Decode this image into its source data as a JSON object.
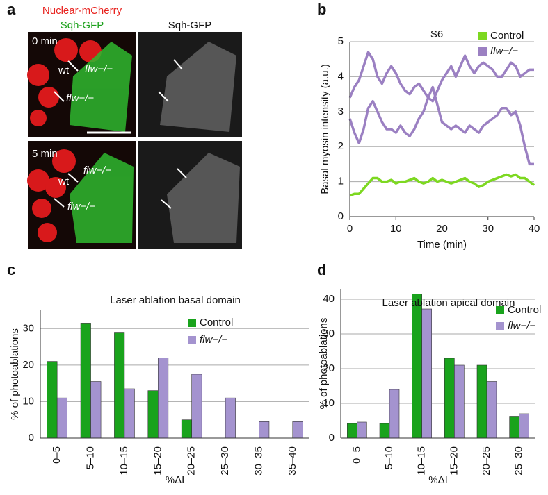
{
  "panel_labels": [
    "a",
    "b",
    "c",
    "d"
  ],
  "panel_a": {
    "header_left_1": "Nuclear-mCherry",
    "header_left_2": "Sqh-GFP",
    "header_right": "Sqh-GFP",
    "time_1": "0 min",
    "time_2": "5 min",
    "wt": "wt",
    "mutant": "flw−/−"
  },
  "chart_data": [
    {
      "type": "line",
      "title": "S6",
      "xlabel": "Time (min)",
      "ylabel": "Basal myosin intensity (a.u.)",
      "x": [
        0,
        1,
        2,
        3,
        4,
        5,
        6,
        7,
        8,
        9,
        10,
        11,
        12,
        13,
        14,
        15,
        16,
        17,
        18,
        19,
        20,
        21,
        22,
        23,
        24,
        25,
        26,
        27,
        28,
        29,
        30,
        31,
        32,
        33,
        34,
        35,
        36,
        37,
        38,
        39,
        40
      ],
      "series": [
        {
          "name": "Control",
          "color": "#7dd821",
          "values": [
            0.6,
            0.65,
            0.65,
            0.8,
            0.95,
            1.1,
            1.1,
            1.0,
            1.0,
            1.05,
            0.95,
            1.0,
            1.0,
            1.05,
            1.1,
            1.0,
            0.95,
            1.0,
            1.1,
            1.0,
            1.05,
            1.0,
            0.95,
            1.0,
            1.05,
            1.1,
            1.0,
            0.95,
            0.85,
            0.9,
            1.0,
            1.05,
            1.1,
            1.15,
            1.2,
            1.15,
            1.2,
            1.1,
            1.1,
            1.0,
            0.9
          ]
        },
        {
          "name": "flw−/−",
          "color": "#9b80c2",
          "values": [
            3.4,
            3.7,
            3.9,
            4.3,
            4.7,
            4.5,
            4.0,
            3.8,
            4.1,
            4.3,
            4.1,
            3.8,
            3.6,
            3.5,
            3.7,
            3.8,
            3.6,
            3.4,
            3.3,
            3.6,
            3.9,
            4.1,
            4.3,
            4.0,
            4.3,
            4.6,
            4.3,
            4.1,
            4.3,
            4.4,
            4.3,
            4.2,
            4.0,
            4.0,
            4.2,
            4.4,
            4.3,
            4.0,
            4.1,
            4.2,
            4.2
          ]
        },
        {
          "name": "flw−/−",
          "color": "#9b80c2",
          "values": [
            2.8,
            2.4,
            2.1,
            2.5,
            3.1,
            3.3,
            3.0,
            2.7,
            2.5,
            2.5,
            2.4,
            2.6,
            2.4,
            2.3,
            2.5,
            2.8,
            3.0,
            3.4,
            3.7,
            3.2,
            2.7,
            2.6,
            2.5,
            2.6,
            2.5,
            2.4,
            2.6,
            2.5,
            2.4,
            2.6,
            2.7,
            2.8,
            2.9,
            3.1,
            3.1,
            2.9,
            3.0,
            2.6,
            2.0,
            1.5,
            1.5
          ]
        }
      ],
      "xlim": [
        0,
        40
      ],
      "ylim": [
        0,
        5
      ],
      "xticks": [
        0,
        10,
        20,
        30,
        40
      ],
      "yticks": [
        0,
        1,
        2,
        3,
        4,
        5
      ],
      "grid": true,
      "legend": "upper right"
    },
    {
      "type": "bar",
      "title": "Laser ablation basal domain",
      "xlabel": "%ΔI",
      "ylabel": "% of photoablations",
      "categories": [
        "0–5",
        "5–10",
        "10–15",
        "15–20",
        "20–25",
        "25–30",
        "30–35",
        "35–40"
      ],
      "series": [
        {
          "name": "Control",
          "color": "#19a31c",
          "values": [
            21,
            31.5,
            29,
            13,
            5,
            0,
            0,
            0
          ]
        },
        {
          "name": "flw−/−",
          "color": "#a493cf",
          "values": [
            11,
            15.5,
            13.5,
            22,
            17.5,
            11,
            4.5,
            4.5
          ]
        }
      ],
      "ylim": [
        0,
        35
      ],
      "yticks": [
        0,
        10,
        20,
        30
      ],
      "grid": true,
      "legend": "upper right"
    },
    {
      "type": "bar",
      "title": "Laser ablation apical domain",
      "xlabel": "%ΔI",
      "ylabel": "% of photoablations",
      "categories": [
        "0–5",
        "5–10",
        "10–15",
        "15–20",
        "20–25",
        "25–30"
      ],
      "series": [
        {
          "name": "Control",
          "color": "#19a31c",
          "values": [
            4.2,
            4.2,
            41.5,
            23,
            21,
            6.3
          ]
        },
        {
          "name": "flw−/−",
          "color": "#a493cf",
          "values": [
            4.6,
            14,
            37.2,
            21,
            16.3,
            7
          ]
        }
      ],
      "ylim": [
        0,
        43
      ],
      "yticks": [
        0,
        10,
        20,
        30,
        40
      ],
      "grid": true,
      "legend": "upper right"
    }
  ]
}
